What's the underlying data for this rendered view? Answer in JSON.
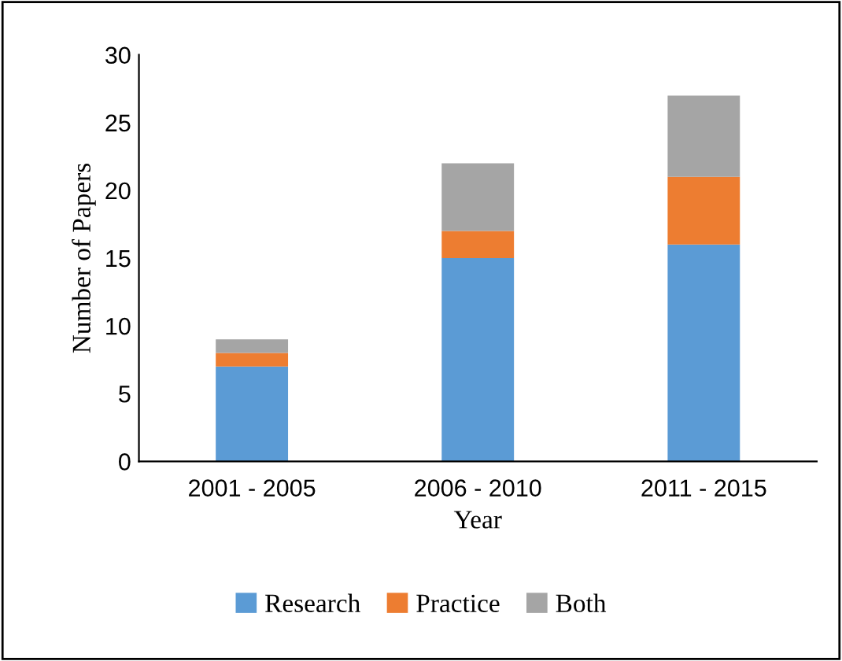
{
  "chart_data": {
    "type": "bar",
    "stacked": true,
    "xlabel": "Year",
    "ylabel": "Number of Papers",
    "categories": [
      "2001 - 2005",
      "2006 - 2010",
      "2011 - 2015"
    ],
    "series": [
      {
        "name": "Research",
        "color": "#5b9bd5",
        "values": [
          7,
          15,
          16
        ]
      },
      {
        "name": "Practice",
        "color": "#ed7d31",
        "values": [
          1,
          2,
          5
        ]
      },
      {
        "name": "Both",
        "color": "#a5a5a5",
        "values": [
          1,
          5,
          6
        ]
      }
    ],
    "ylim": [
      0,
      30
    ],
    "yticks": [
      0,
      5,
      10,
      15,
      20,
      25,
      30
    ],
    "grid": false,
    "legend": "bottom"
  }
}
